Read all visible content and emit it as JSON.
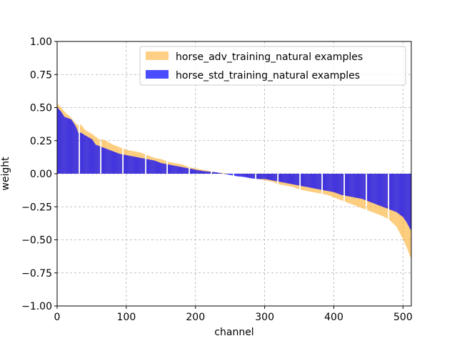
{
  "chart_data": {
    "type": "bar",
    "xlabel": "channel",
    "ylabel": "weight",
    "xlim": [
      0,
      512
    ],
    "ylim": [
      -1.0,
      1.0
    ],
    "xticks": [
      0,
      100,
      200,
      300,
      400,
      500
    ],
    "yticks": [
      -1.0,
      -0.75,
      -0.5,
      -0.25,
      0.0,
      0.25,
      0.5,
      0.75,
      1.0
    ],
    "xtick_labels": [
      "0",
      "100",
      "200",
      "300",
      "400",
      "500"
    ],
    "ytick_labels": [
      "−1.00",
      "−0.75",
      "−0.50",
      "−0.25",
      "0.00",
      "0.25",
      "0.50",
      "0.75",
      "1.00"
    ],
    "grid": true,
    "legend_position": "top-right",
    "series": [
      {
        "name": "horse_adv_training_natural examples",
        "color": "#fbb034",
        "alpha": 0.6,
        "points": [
          [
            0,
            0.53
          ],
          [
            10,
            0.47
          ],
          [
            20,
            0.42
          ],
          [
            28,
            0.37
          ],
          [
            34,
            0.37
          ],
          [
            40,
            0.33
          ],
          [
            50,
            0.3
          ],
          [
            60,
            0.26
          ],
          [
            65,
            0.26
          ],
          [
            70,
            0.25
          ],
          [
            80,
            0.22
          ],
          [
            90,
            0.2
          ],
          [
            100,
            0.18
          ],
          [
            110,
            0.17
          ],
          [
            120,
            0.16
          ],
          [
            130,
            0.14
          ],
          [
            140,
            0.12
          ],
          [
            150,
            0.11
          ],
          [
            160,
            0.09
          ],
          [
            170,
            0.08
          ],
          [
            180,
            0.07
          ],
          [
            190,
            0.05
          ],
          [
            200,
            0.04
          ],
          [
            210,
            0.03
          ],
          [
            220,
            0.02
          ],
          [
            230,
            0.01
          ],
          [
            240,
            0.005
          ],
          [
            250,
            0.0
          ],
          [
            255,
            -0.005
          ],
          [
            260,
            -0.01
          ],
          [
            270,
            -0.02
          ],
          [
            280,
            -0.03
          ],
          [
            290,
            -0.04
          ],
          [
            300,
            -0.05
          ],
          [
            310,
            -0.06
          ],
          [
            320,
            -0.08
          ],
          [
            330,
            -0.09
          ],
          [
            340,
            -0.1
          ],
          [
            350,
            -0.12
          ],
          [
            360,
            -0.13
          ],
          [
            370,
            -0.14
          ],
          [
            380,
            -0.15
          ],
          [
            390,
            -0.16
          ],
          [
            400,
            -0.18
          ],
          [
            410,
            -0.2
          ],
          [
            420,
            -0.22
          ],
          [
            430,
            -0.24
          ],
          [
            440,
            -0.26
          ],
          [
            450,
            -0.28
          ],
          [
            460,
            -0.3
          ],
          [
            470,
            -0.32
          ],
          [
            480,
            -0.35
          ],
          [
            490,
            -0.4
          ],
          [
            500,
            -0.5
          ],
          [
            505,
            -0.56
          ],
          [
            510,
            -0.63
          ]
        ]
      },
      {
        "name": "horse_std_training_natural examples",
        "color": "#0000ff",
        "alpha": 0.7,
        "points": [
          [
            0,
            0.5
          ],
          [
            5,
            0.47
          ],
          [
            10,
            0.43
          ],
          [
            20,
            0.41
          ],
          [
            25,
            0.37
          ],
          [
            28,
            0.34
          ],
          [
            30,
            0.31
          ],
          [
            34,
            0.31
          ],
          [
            40,
            0.29
          ],
          [
            50,
            0.26
          ],
          [
            55,
            0.22
          ],
          [
            60,
            0.21
          ],
          [
            65,
            0.2
          ],
          [
            70,
            0.19
          ],
          [
            80,
            0.17
          ],
          [
            90,
            0.15
          ],
          [
            100,
            0.14
          ],
          [
            110,
            0.13
          ],
          [
            120,
            0.12
          ],
          [
            130,
            0.11
          ],
          [
            140,
            0.1
          ],
          [
            150,
            0.08
          ],
          [
            160,
            0.07
          ],
          [
            170,
            0.06
          ],
          [
            180,
            0.05
          ],
          [
            190,
            0.04
          ],
          [
            200,
            0.03
          ],
          [
            210,
            0.02
          ],
          [
            220,
            0.015
          ],
          [
            230,
            0.01
          ],
          [
            240,
            0.0
          ],
          [
            250,
            -0.01
          ],
          [
            260,
            -0.02
          ],
          [
            270,
            -0.025
          ],
          [
            280,
            -0.035
          ],
          [
            290,
            -0.04
          ],
          [
            300,
            -0.04
          ],
          [
            310,
            -0.05
          ],
          [
            320,
            -0.06
          ],
          [
            330,
            -0.07
          ],
          [
            340,
            -0.08
          ],
          [
            350,
            -0.09
          ],
          [
            360,
            -0.1
          ],
          [
            370,
            -0.11
          ],
          [
            380,
            -0.12
          ],
          [
            390,
            -0.13
          ],
          [
            400,
            -0.14
          ],
          [
            410,
            -0.16
          ],
          [
            420,
            -0.17
          ],
          [
            430,
            -0.18
          ],
          [
            440,
            -0.19
          ],
          [
            450,
            -0.21
          ],
          [
            460,
            -0.23
          ],
          [
            470,
            -0.25
          ],
          [
            480,
            -0.27
          ],
          [
            490,
            -0.29
          ],
          [
            500,
            -0.33
          ],
          [
            505,
            -0.37
          ],
          [
            510,
            -0.42
          ]
        ]
      }
    ],
    "gap_channels": [
      31,
      32,
      62,
      63,
      94,
      95,
      127,
      128,
      158,
      159,
      190,
      191,
      222,
      223,
      254,
      255,
      286,
      287,
      318,
      319,
      350,
      351,
      382,
      383,
      414,
      415,
      446,
      447,
      478,
      479
    ]
  }
}
